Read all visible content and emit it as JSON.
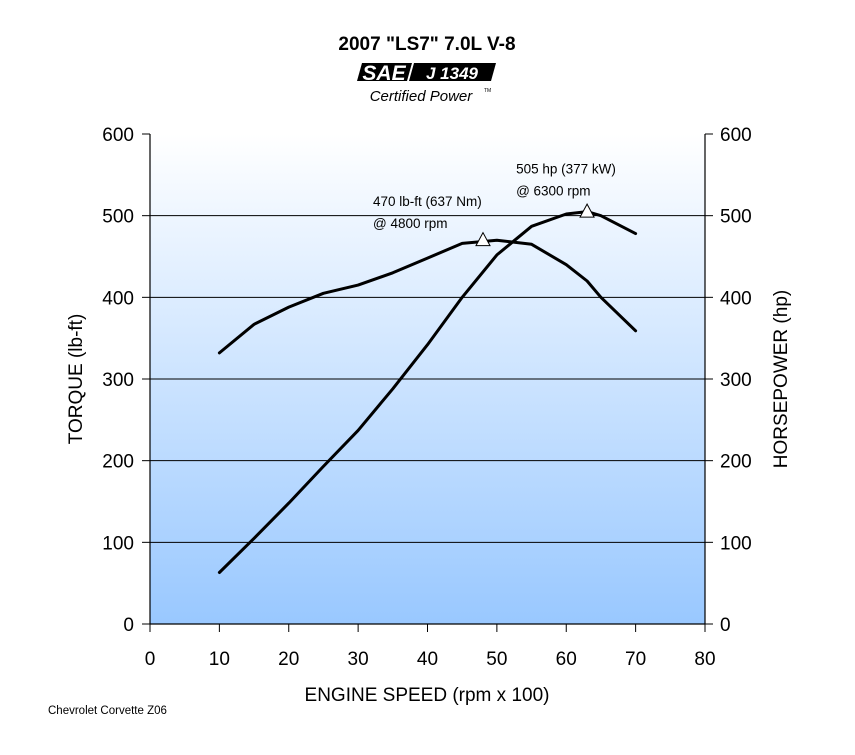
{
  "chart_data": {
    "type": "line",
    "title": "2007 \"LS7\" 7.0L V-8",
    "logo": {
      "brand": "SAE",
      "standard": "J 1349",
      "caption": "Certified Power",
      "tm": "TM"
    },
    "xlabel": "ENGINE SPEED (rpm x 100)",
    "ylabel_left": "TORQUE (lb-ft)",
    "ylabel_right": "HORSEPOWER (hp)",
    "xlim": [
      0,
      80
    ],
    "ylim": [
      0,
      600
    ],
    "x_ticks": [
      "0",
      "10",
      "20",
      "30",
      "40",
      "50",
      "60",
      "70",
      "80"
    ],
    "y_ticks_left": [
      "0",
      "100",
      "200",
      "300",
      "400",
      "500",
      "600"
    ],
    "y_ticks_right": [
      "0",
      "100",
      "200",
      "300",
      "400",
      "500",
      "600"
    ],
    "grid": "horizontal",
    "background": {
      "top": "#ffffff",
      "bottom": "#99c8ff"
    },
    "line_color": "#000000",
    "series": [
      {
        "key": "torque",
        "axis": "left",
        "x": [
          10,
          15,
          20,
          25,
          30,
          35,
          40,
          45,
          50,
          55,
          60,
          63,
          65,
          70
        ],
        "y": [
          332,
          367,
          388,
          405,
          415,
          430,
          448,
          466,
          470,
          465,
          440,
          420,
          400,
          359
        ]
      },
      {
        "key": "horsepower",
        "axis": "right",
        "x": [
          10,
          15,
          20,
          25,
          30,
          35,
          40,
          45,
          50,
          55,
          60,
          63,
          65,
          70
        ],
        "y": [
          63,
          105,
          148,
          193,
          237,
          288,
          342,
          400,
          452,
          487,
          502,
          505,
          500,
          478
        ]
      }
    ],
    "annotations": [
      {
        "key": "peak-torque",
        "lines": [
          "470 lb-ft (637 Nm)",
          "@ 4800 rpm"
        ],
        "x": 48,
        "y": 470
      },
      {
        "key": "peak-horsepower",
        "lines": [
          "505 hp (377 kW)",
          "@ 6300 rpm"
        ],
        "x": 63,
        "y": 505
      }
    ],
    "footer": "Chevrolet Corvette Z06"
  }
}
